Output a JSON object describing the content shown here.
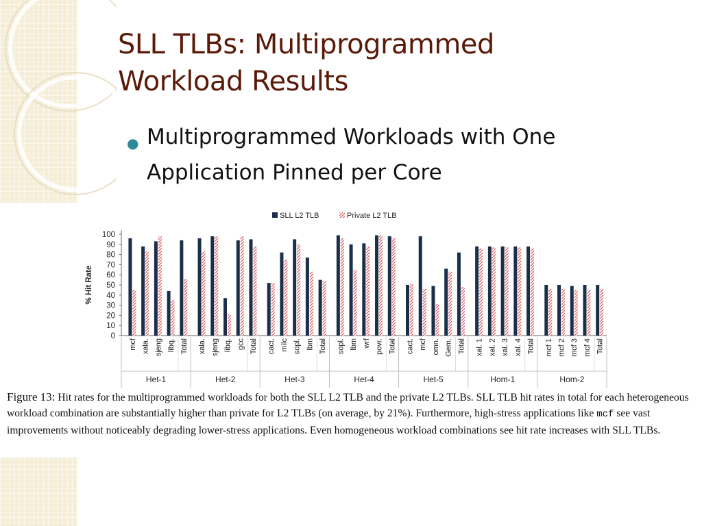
{
  "slide": {
    "title": "SLL TLBs: Multiprogrammed Workload Results",
    "bullet": "Multiprogrammed Workloads with One Application Pinned per Core"
  },
  "colors": {
    "title": "#5a1a08",
    "bullet_dot": "#2e8a9a",
    "sll_bar": "#1c2f4a",
    "private_bar": "#d9474b"
  },
  "chart_data": {
    "type": "bar",
    "ylabel": "% Hit Rate",
    "ylim": [
      0,
      100
    ],
    "yticks": [
      0,
      10,
      20,
      30,
      40,
      50,
      60,
      70,
      80,
      90,
      100
    ],
    "legend_position": "top-center",
    "series": [
      {
        "name": "SLL L2 TLB",
        "values": [
          96,
          88,
          93,
          44,
          94,
          96,
          98,
          37,
          94,
          95,
          52,
          82,
          95,
          77,
          55,
          99,
          90,
          91,
          99,
          98,
          50,
          98,
          49,
          66,
          82,
          88,
          88,
          88,
          88,
          88,
          50,
          50,
          49,
          50,
          50
        ]
      },
      {
        "name": "Private L2 TLB",
        "values": [
          45,
          83,
          98,
          35,
          56,
          83,
          98,
          21,
          98,
          88,
          52,
          75,
          90,
          63,
          54,
          96,
          65,
          88,
          99,
          96,
          51,
          46,
          31,
          63,
          48,
          86,
          87,
          87,
          87,
          86,
          46,
          46,
          45,
          45,
          46
        ]
      }
    ],
    "groups": [
      {
        "name": "Het-1",
        "categories": [
          "mcf",
          "xala.",
          "sjeng",
          "libq.",
          "Total"
        ]
      },
      {
        "name": "Het-2",
        "categories": [
          "xala.",
          "sjeng",
          "libq.",
          "gcc",
          "Total"
        ]
      },
      {
        "name": "Het-3",
        "categories": [
          "cact.",
          "milc",
          "sopl.",
          "lbm",
          "Total"
        ]
      },
      {
        "name": "Het-4",
        "categories": [
          "sopl.",
          "lbm",
          "wrf",
          "povr.",
          "Total"
        ]
      },
      {
        "name": "Het-5",
        "categories": [
          "cact.",
          "mcf",
          "omn.",
          "Gem.",
          "Total"
        ]
      },
      {
        "name": "Hom-1",
        "categories": [
          "xal. 1",
          "xal. 2",
          "xal. 3",
          "xal. 4",
          "Total"
        ]
      },
      {
        "name": "Hom-2",
        "categories": [
          "mcf 1",
          "mcf 2",
          "mcf 3",
          "mcf 4",
          "Total"
        ]
      }
    ]
  },
  "caption": {
    "label": "Figure 13:",
    "text_before_code": " Hit rates for the multiprogrammed workloads for both the SLL L2 TLB and the private L2 TLBs. SLL TLB hit rates in total for each heterogeneous workload combination are substantially higher than private for L2 TLBs (on average, by 21%). Furthermore, high-stress applications like ",
    "code": "mcf",
    "text_after_code": " see vast improvements without noticeably degrading lower-stress applications. Even homogeneous workload combinations see hit rate increases with SLL TLBs."
  }
}
